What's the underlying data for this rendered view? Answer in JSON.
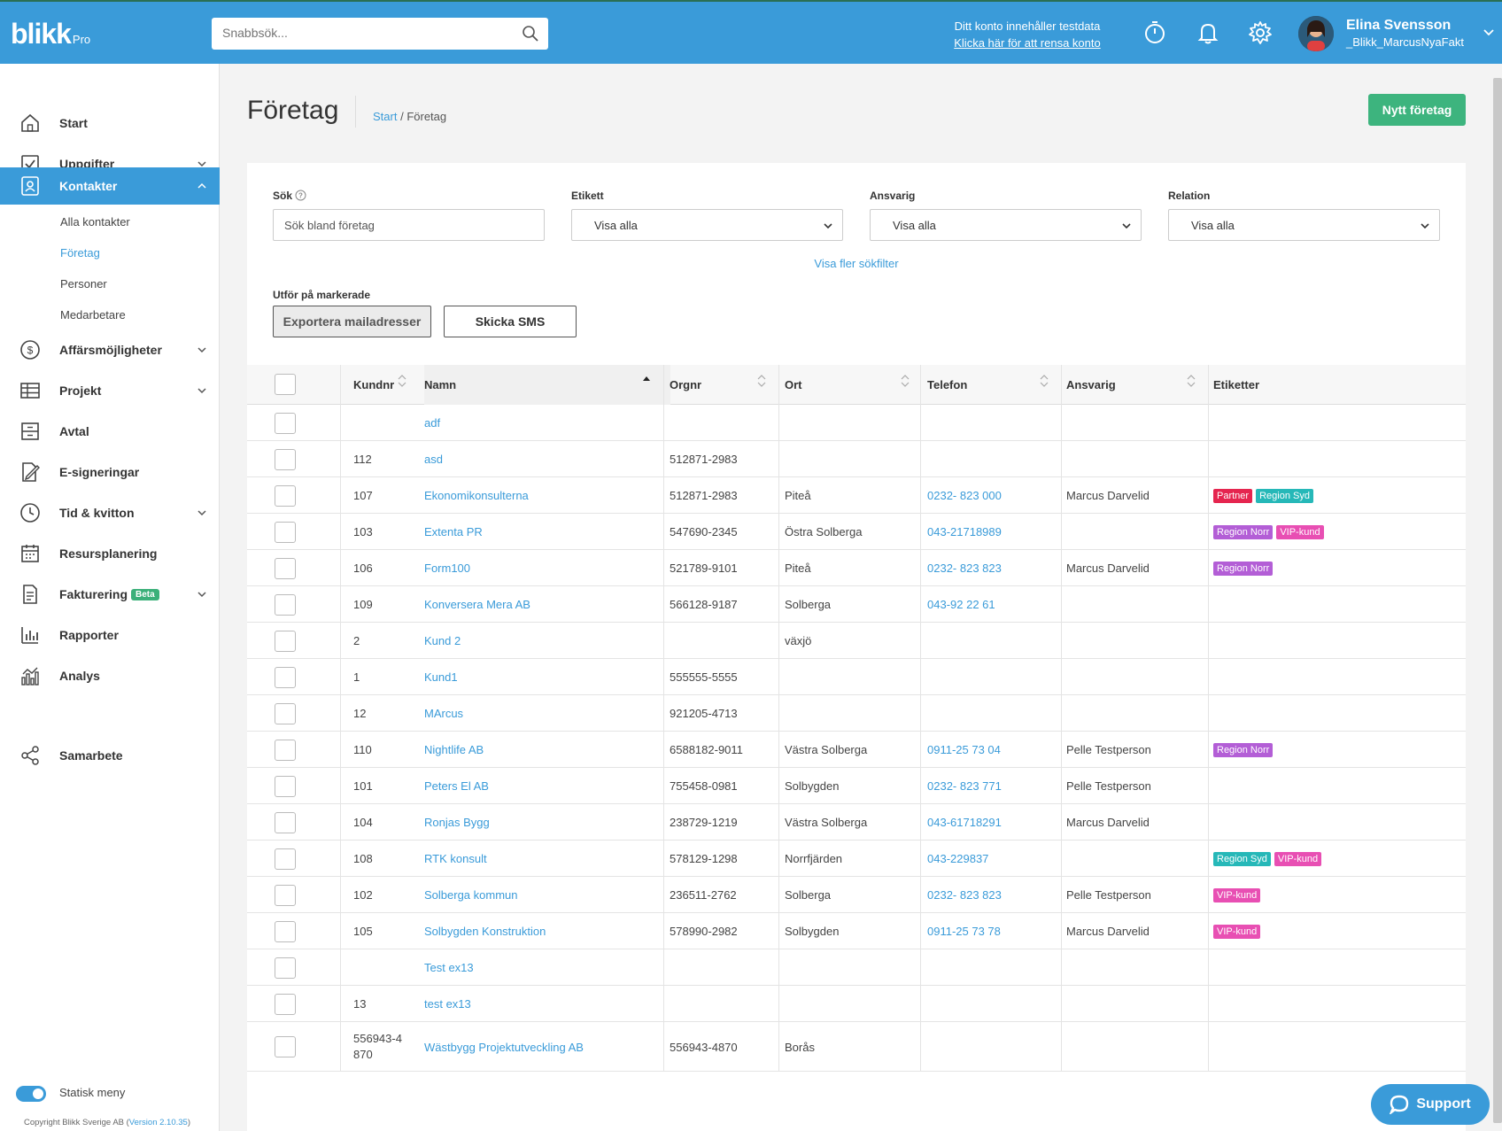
{
  "header": {
    "logo": "blikk",
    "logo_suffix": "Pro",
    "search_placeholder": "Snabbsök...",
    "testdata_notice": "Ditt konto innehåller testdata",
    "testdata_link": "Klicka här för att rensa konto",
    "user_name": "Elina Svensson",
    "user_org": "_Blikk_MarcusNyaFakt"
  },
  "sidebar": {
    "items": [
      {
        "label": "Start",
        "icon": "home-icon"
      },
      {
        "label": "Uppgifter",
        "icon": "checkbox-icon"
      },
      {
        "label": "Kontakter",
        "icon": "contact-card-icon"
      },
      {
        "label": "Affärsmöjligheter",
        "icon": "dollar-icon"
      },
      {
        "label": "Projekt",
        "icon": "table-icon"
      },
      {
        "label": "Avtal",
        "icon": "archive-icon"
      },
      {
        "label": "E-signeringar",
        "icon": "sign-icon"
      },
      {
        "label": "Tid & kvitton",
        "icon": "clock-icon"
      },
      {
        "label": "Resursplanering",
        "icon": "calendar-icon"
      },
      {
        "label": "Fakturering",
        "icon": "document-icon",
        "badge": "Beta"
      },
      {
        "label": "Rapporter",
        "icon": "bar-chart-icon"
      },
      {
        "label": "Analys",
        "icon": "analytics-icon"
      },
      {
        "label": "Samarbete",
        "icon": "share-icon"
      }
    ],
    "sub_items": [
      "Alla kontakter",
      "Företag",
      "Personer",
      "Medarbetare"
    ],
    "static_menu_label": "Statisk meny",
    "copyright": "Copyright Blikk Sverige AB (",
    "version": "Version 2.10.35",
    "copyright_end": ")"
  },
  "page": {
    "title": "Företag",
    "breadcrumb_start": "Start",
    "breadcrumb_sep": " / ",
    "breadcrumb_current": "Företag",
    "new_button": "Nytt företag"
  },
  "filters": {
    "search_label": "Sök",
    "search_placeholder": "Sök bland företag",
    "etikett_label": "Etikett",
    "etikett_value": "Visa alla",
    "ansvarig_label": "Ansvarig",
    "ansvarig_value": "Visa alla",
    "relation_label": "Relation",
    "relation_value": "Visa alla",
    "more_filters": "Visa fler sökfilter",
    "bulk_label": "Utför på markerade",
    "export_button": "Exportera mailadresser",
    "sms_button": "Skicka SMS"
  },
  "table": {
    "columns": [
      "Kundnr",
      "Namn",
      "Orgnr",
      "Ort",
      "Telefon",
      "Ansvarig",
      "Etiketter"
    ],
    "rows": [
      {
        "kundnr": "",
        "namn": "adf",
        "orgnr": "",
        "ort": "",
        "telefon": "",
        "ansvarig": "",
        "tags": []
      },
      {
        "kundnr": "112",
        "namn": "asd",
        "orgnr": "512871-2983",
        "ort": "",
        "telefon": "",
        "ansvarig": "",
        "tags": []
      },
      {
        "kundnr": "107",
        "namn": "Ekonomikonsulterna",
        "orgnr": "512871-2983",
        "ort": "Piteå",
        "telefon": "0232- 823 000",
        "ansvarig": "Marcus Darvelid",
        "tags": [
          "Partner",
          "Region Syd"
        ]
      },
      {
        "kundnr": "103",
        "namn": "Extenta PR",
        "orgnr": "547690-2345",
        "ort": "Östra Solberga",
        "telefon": "043-21718989",
        "ansvarig": "",
        "tags": [
          "Region Norr",
          "VIP-kund"
        ]
      },
      {
        "kundnr": "106",
        "namn": "Form100",
        "orgnr": "521789-9101",
        "ort": "Piteå",
        "telefon": "0232- 823 823",
        "ansvarig": "Marcus Darvelid",
        "tags": [
          "Region Norr"
        ]
      },
      {
        "kundnr": "109",
        "namn": "Konversera Mera AB",
        "orgnr": "566128-9187",
        "ort": "Solberga",
        "telefon": "043-92 22 61",
        "ansvarig": "",
        "tags": []
      },
      {
        "kundnr": "2",
        "namn": "Kund 2",
        "orgnr": "",
        "ort": "växjö",
        "telefon": "",
        "ansvarig": "",
        "tags": []
      },
      {
        "kundnr": "1",
        "namn": "Kund1",
        "orgnr": "555555-5555",
        "ort": "",
        "telefon": "",
        "ansvarig": "",
        "tags": []
      },
      {
        "kundnr": "12",
        "namn": "MArcus",
        "orgnr": "921205-4713",
        "ort": "",
        "telefon": "",
        "ansvarig": "",
        "tags": []
      },
      {
        "kundnr": "110",
        "namn": "Nightlife AB",
        "orgnr": "6588182-9011",
        "ort": "Västra Solberga",
        "telefon": "0911-25 73 04",
        "ansvarig": "Pelle Testperson",
        "tags": [
          "Region Norr"
        ]
      },
      {
        "kundnr": "101",
        "namn": "Peters El AB",
        "orgnr": "755458-0981",
        "ort": "Solbygden",
        "telefon": "0232- 823 771",
        "ansvarig": "Pelle Testperson",
        "tags": []
      },
      {
        "kundnr": "104",
        "namn": "Ronjas Bygg",
        "orgnr": "238729-1219",
        "ort": "Västra Solberga",
        "telefon": "043-61718291",
        "ansvarig": "Marcus Darvelid",
        "tags": []
      },
      {
        "kundnr": "108",
        "namn": "RTK konsult",
        "orgnr": "578129-1298",
        "ort": "Norrfjärden",
        "telefon": "043-229837",
        "ansvarig": "",
        "tags": [
          "Region Syd",
          "VIP-kund"
        ]
      },
      {
        "kundnr": "102",
        "namn": "Solberga kommun",
        "orgnr": "236511-2762",
        "ort": "Solberga",
        "telefon": "0232- 823 823",
        "ansvarig": "Pelle Testperson",
        "tags": [
          "VIP-kund"
        ]
      },
      {
        "kundnr": "105",
        "namn": "Solbygden Konstruktion",
        "orgnr": "578990-2982",
        "ort": "Solbygden",
        "telefon": "0911-25 73 78",
        "ansvarig": "Marcus Darvelid",
        "tags": [
          "VIP-kund"
        ]
      },
      {
        "kundnr": "",
        "namn": "Test ex13",
        "orgnr": "",
        "ort": "",
        "telefon": "",
        "ansvarig": "",
        "tags": []
      },
      {
        "kundnr": "13",
        "namn": "test ex13",
        "orgnr": "",
        "ort": "",
        "telefon": "",
        "ansvarig": "",
        "tags": []
      },
      {
        "kundnr": "556943-4870",
        "namn": "Wästbygg Projektutveckling AB",
        "orgnr": "556943-4870",
        "ort": "Borås",
        "telefon": "",
        "ansvarig": "",
        "tags": []
      }
    ],
    "tag_colors": {
      "Partner": "#e5254f",
      "Region Syd": "#26b8b8",
      "Region Norr": "#b35ed6",
      "VIP-kund": "#e84fb3"
    }
  },
  "support_label": "Support",
  "colors": {
    "brand": "#3a9bd9",
    "green": "#3db47e"
  }
}
